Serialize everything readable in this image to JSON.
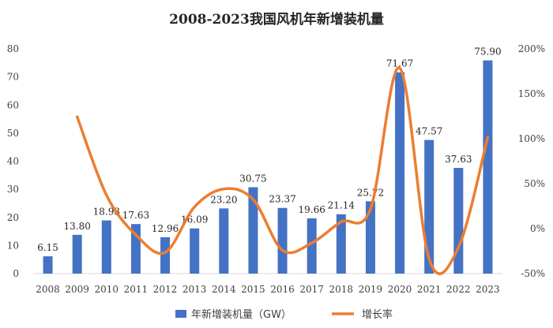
{
  "chart_data": {
    "type": "bar+line",
    "title": "2008-2023我国风机年新增装机量",
    "categories": [
      "2008",
      "2009",
      "2010",
      "2011",
      "2012",
      "2013",
      "2014",
      "2015",
      "2016",
      "2017",
      "2018",
      "2019",
      "2020",
      "2021",
      "2022",
      "2023"
    ],
    "series": [
      {
        "name": "年新增装机量（GW）",
        "type": "bar",
        "axis": "left",
        "values": [
          6.15,
          13.8,
          18.93,
          17.63,
          12.96,
          16.09,
          23.2,
          30.75,
          23.37,
          19.66,
          21.14,
          25.72,
          71.67,
          47.57,
          37.63,
          75.9
        ],
        "labels": [
          "6.15",
          "13.80",
          "18.93",
          "17.63",
          "12.96",
          "16.09",
          "23.20",
          "30.75",
          "23.37",
          "19.66",
          "21.14",
          "25.72",
          "71.67",
          "47.57",
          "37.63",
          "75.90"
        ]
      },
      {
        "name": "增长率",
        "type": "line",
        "axis": "right",
        "values": [
          null,
          124.4,
          37.2,
          -6.9,
          -26.5,
          24.2,
          44.2,
          32.5,
          -24.0,
          -15.9,
          7.5,
          21.7,
          178.7,
          -33.6,
          -20.9,
          101.7
        ]
      }
    ],
    "y_left": {
      "min": 0,
      "max": 80,
      "ticks": [
        "0",
        "10",
        "20",
        "30",
        "40",
        "50",
        "60",
        "70",
        "80"
      ]
    },
    "y_right": {
      "min": -50,
      "max": 200,
      "ticks": [
        "-50%",
        "0%",
        "50%",
        "100%",
        "150%",
        "200%"
      ]
    },
    "legend_position": "bottom-center",
    "grid": false,
    "colors": {
      "bar": "#4472C4",
      "line": "#ED7D31",
      "axis": "#D9D9D9"
    }
  }
}
